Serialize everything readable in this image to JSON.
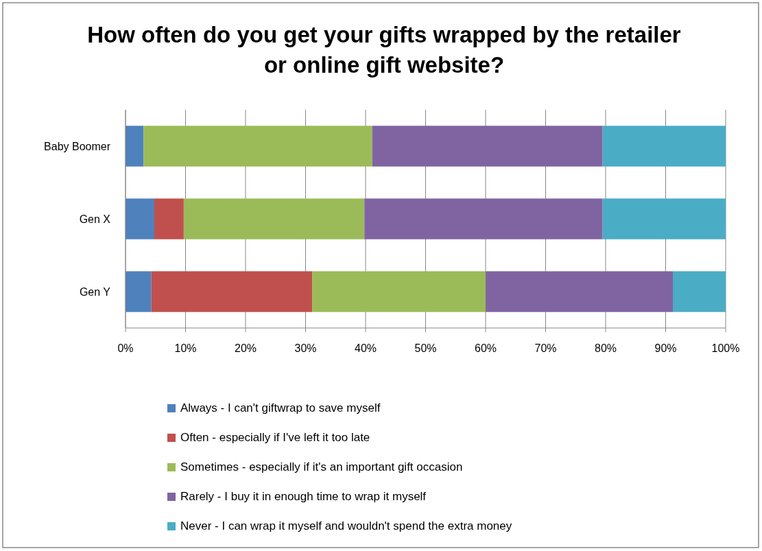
{
  "chart_data": {
    "type": "bar",
    "title": "How often do you get your gifts wrapped by the retailer or online gift website?",
    "orientation": "horizontal",
    "stacked": true,
    "categories": [
      "Baby Boomer",
      "Gen X",
      "Gen Y"
    ],
    "series": [
      {
        "name": "Always - I can't giftwrap to save myself",
        "color": "#4f81bd",
        "values": [
          3.0,
          4.8,
          4.3
        ]
      },
      {
        "name": "Often - especially if I've left it too late",
        "color": "#c0504d",
        "values": [
          0,
          4.9,
          26.8
        ]
      },
      {
        "name": "Sometimes - especially if it's an important gift occasion",
        "color": "#9bbb59",
        "values": [
          38.1,
          30.1,
          28.9
        ]
      },
      {
        "name": "Rarely - I buy it in enough time to wrap it myself",
        "color": "#8064a2",
        "values": [
          38.4,
          39.7,
          31.2
        ]
      },
      {
        "name": "Never - I can wrap it myself and wouldn't spend the extra money",
        "color": "#4bacc6",
        "values": [
          20.5,
          20.5,
          8.8
        ]
      }
    ],
    "xlim": [
      0,
      100
    ],
    "xticks": [
      {
        "value": 0,
        "label": "0%"
      },
      {
        "value": 10,
        "label": "10%"
      },
      {
        "value": 20,
        "label": "20%"
      },
      {
        "value": 30,
        "label": "30%"
      },
      {
        "value": 40,
        "label": "40%"
      },
      {
        "value": 50,
        "label": "50%"
      },
      {
        "value": 60,
        "label": "60%"
      },
      {
        "value": 70,
        "label": "70%"
      },
      {
        "value": 80,
        "label": "80%"
      },
      {
        "value": 90,
        "label": "90%"
      },
      {
        "value": 100,
        "label": "100%"
      }
    ],
    "grid": "x",
    "legend": "bottom"
  }
}
